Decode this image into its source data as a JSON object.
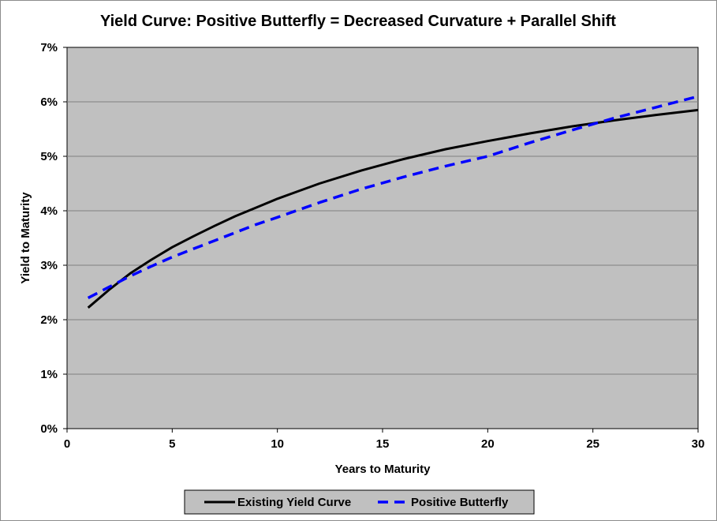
{
  "chart_data": {
    "type": "line",
    "title": "Yield Curve: Positive Butterfly = Decreased Curvature + Parallel Shift",
    "xlabel": "Years to Maturity",
    "ylabel": "Yield to Maturity",
    "xlim": [
      0,
      30
    ],
    "ylim": [
      0,
      0.07
    ],
    "x_ticks": [
      "0",
      "5",
      "10",
      "15",
      "20",
      "25",
      "30"
    ],
    "y_ticks": [
      "0%",
      "1%",
      "2%",
      "3%",
      "4%",
      "5%",
      "6%",
      "7%"
    ],
    "grid": "horizontal",
    "plot_background": "#c0c0c0",
    "legend_position": "bottom",
    "series": [
      {
        "name": "Existing Yield Curve",
        "color": "#000000",
        "style": "solid",
        "x": [
          1,
          2,
          3,
          4,
          5,
          6,
          7,
          8,
          9,
          10,
          12,
          14,
          16,
          18,
          20,
          22,
          24,
          26,
          28,
          30
        ],
        "y": [
          0.0222,
          0.0255,
          0.0285,
          0.031,
          0.0333,
          0.0353,
          0.0372,
          0.039,
          0.0406,
          0.0422,
          0.045,
          0.0474,
          0.0495,
          0.0513,
          0.0528,
          0.0542,
          0.0555,
          0.0566,
          0.0576,
          0.0585
        ]
      },
      {
        "name": "Positive Butterfly",
        "color": "#0000ff",
        "style": "dashed",
        "x": [
          1,
          2,
          3,
          4,
          5,
          6,
          7,
          8,
          9,
          10,
          12,
          14,
          16,
          18,
          20,
          22,
          24,
          26,
          28,
          30
        ],
        "y": [
          0.024,
          0.026,
          0.028,
          0.0298,
          0.0315,
          0.033,
          0.0345,
          0.036,
          0.0375,
          0.0388,
          0.0415,
          0.044,
          0.0462,
          0.0482,
          0.05,
          0.0525,
          0.0548,
          0.057,
          0.059,
          0.061
        ]
      }
    ]
  }
}
